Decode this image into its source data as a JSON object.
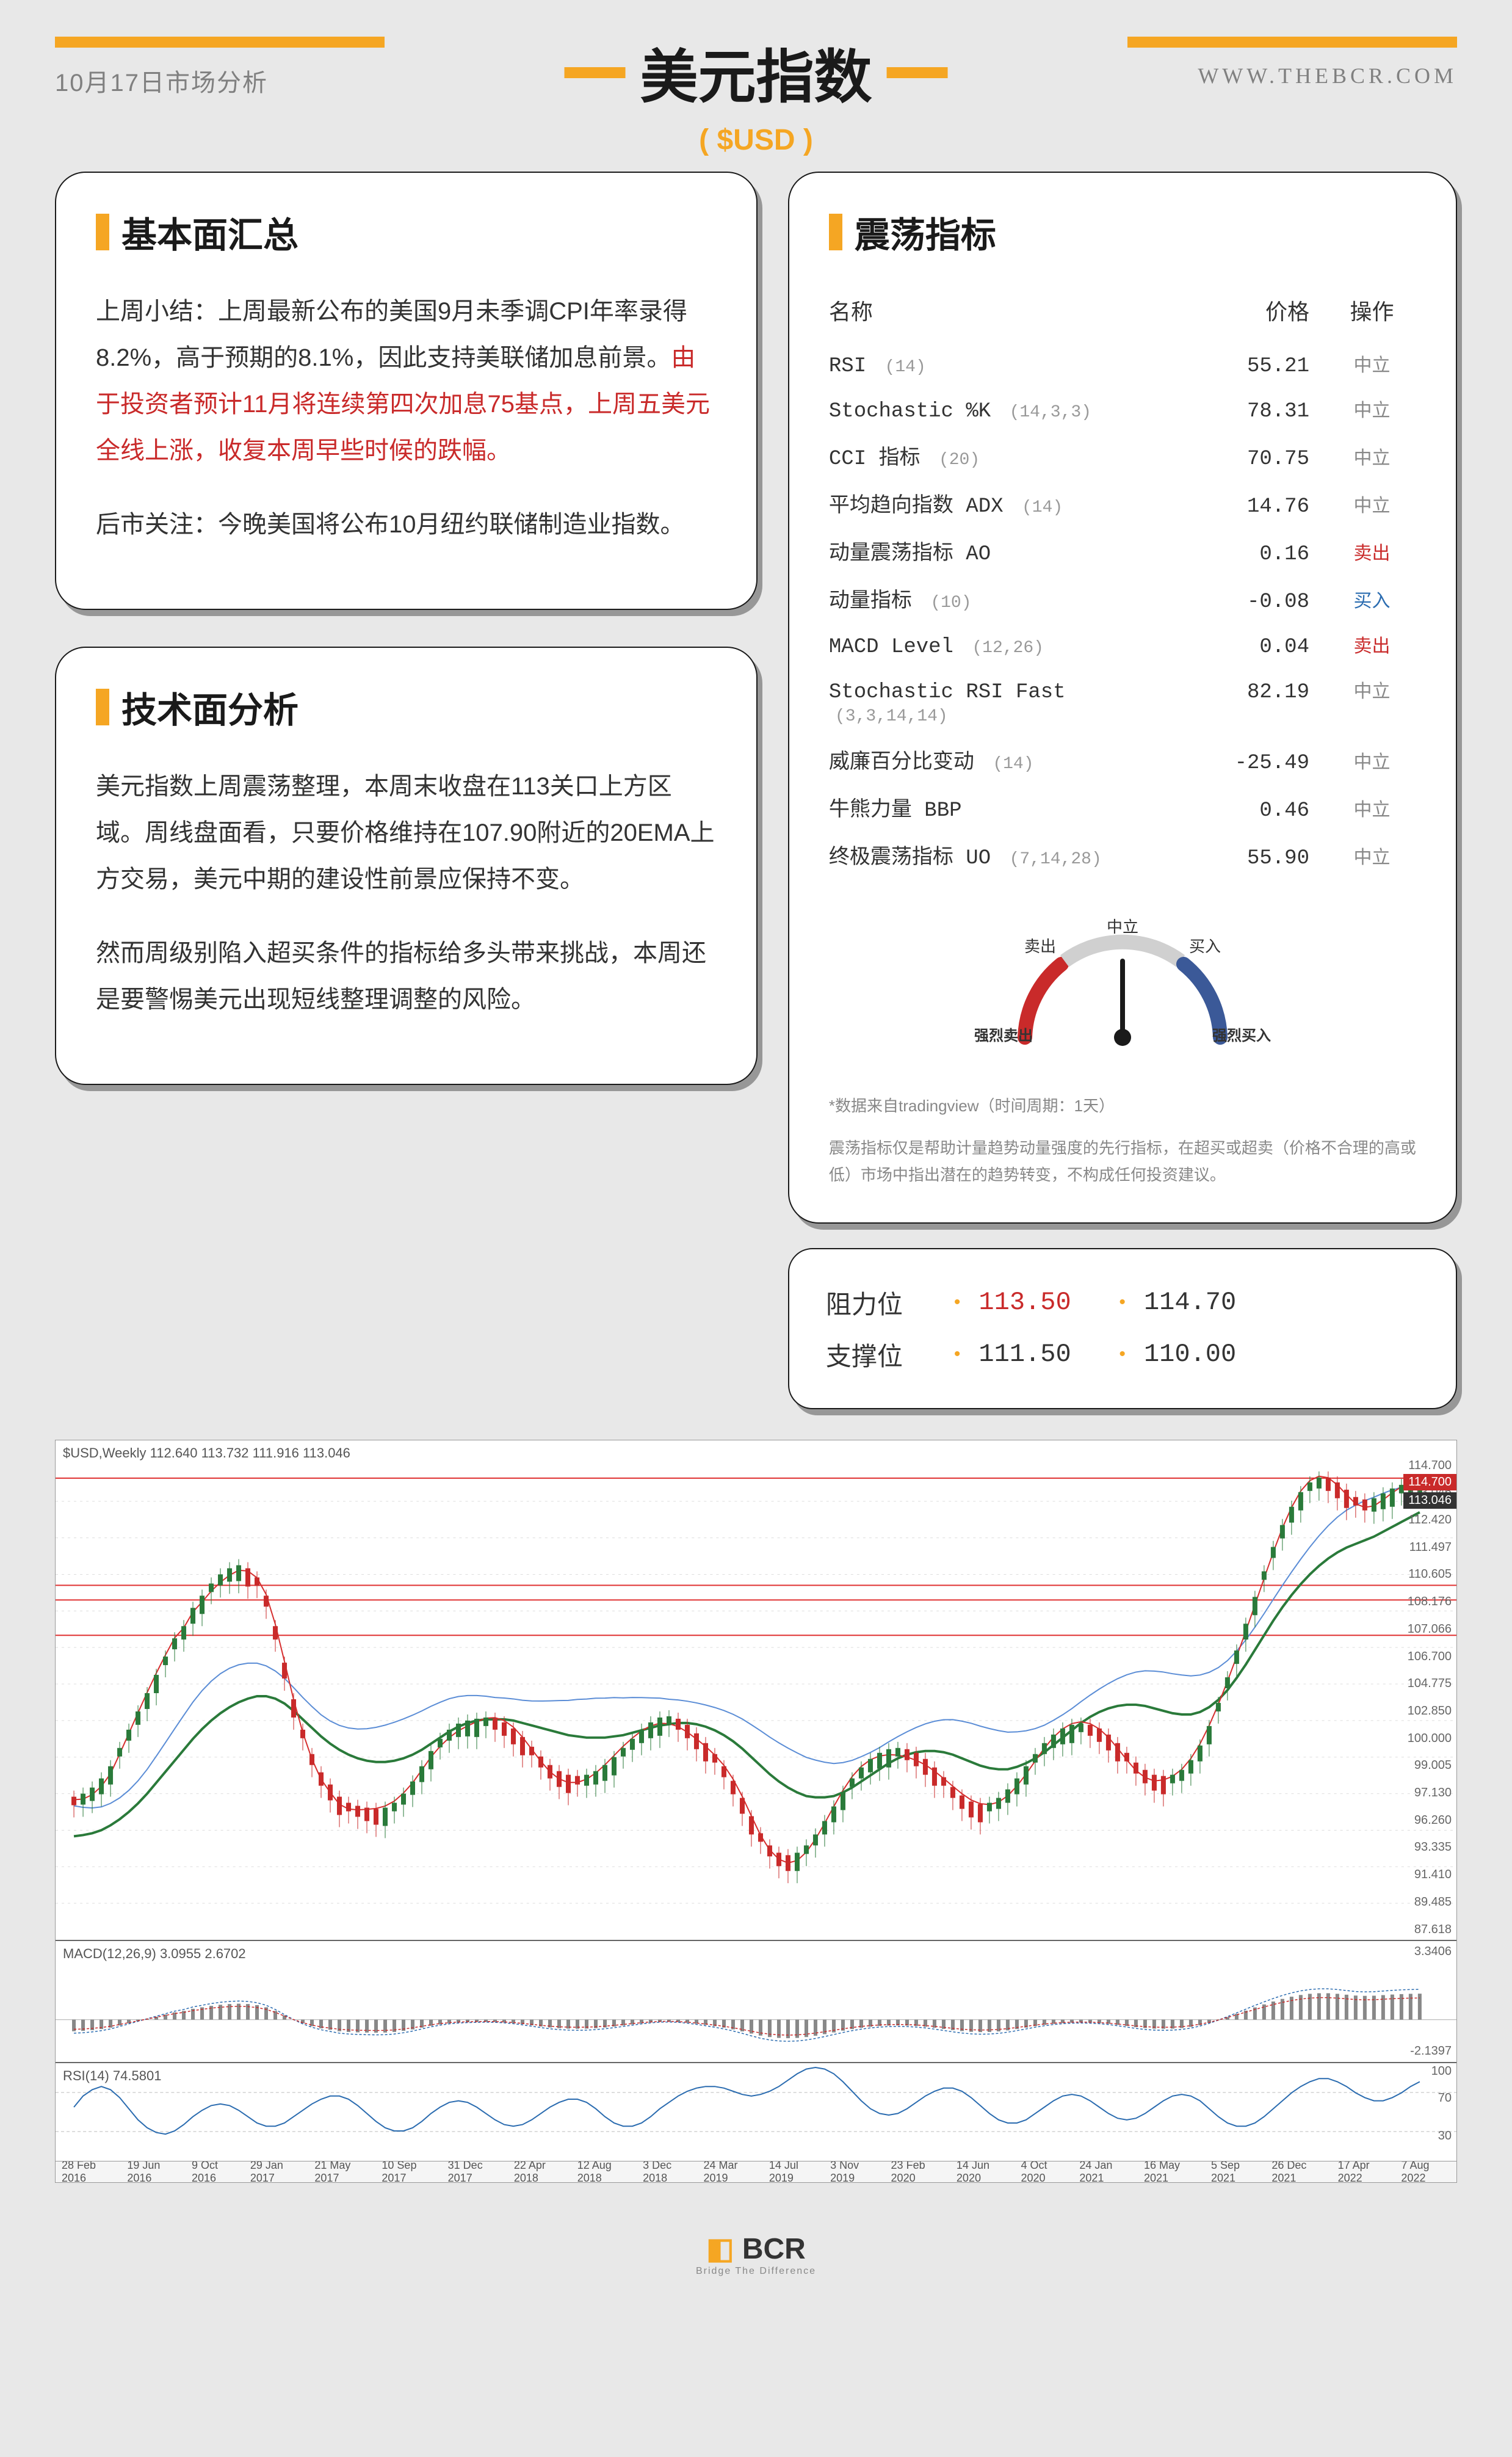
{
  "header": {
    "date": "10月17日市场分析",
    "title": "美元指数",
    "subtitle": "( $USD )",
    "website": "WWW.THEBCR.COM",
    "bar_color": "#f5a623"
  },
  "fundamentals": {
    "title": "基本面汇总",
    "p1_black_a": "上周小结：上周最新公布的美国9月未季调CPI年率录得8.2%，高于预期的8.1%，因此支持美联储加息前景。",
    "p1_red": "由于投资者预计11月将连续第四次加息75基点，上周五美元全线上涨，收复本周早些时候的跌幅。",
    "p2": "后市关注：今晚美国将公布10月纽约联储制造业指数。"
  },
  "technical": {
    "title": "技术面分析",
    "p1": "美元指数上周震荡整理，本周末收盘在113关口上方区域。周线盘面看，只要价格维持在107.90附近的20EMA上方交易，美元中期的建设性前景应保持不变。",
    "p2": "然而周级别陷入超买条件的指标给多头带来挑战，本周还是要警惕美元出现短线整理调整的风险。"
  },
  "oscillators": {
    "title": "震荡指标",
    "headers": {
      "name": "名称",
      "price": "价格",
      "action": "操作"
    },
    "rows": [
      {
        "name": "RSI",
        "params": "(14)",
        "price": "55.21",
        "action": "中立",
        "cls": "act-neutral"
      },
      {
        "name": "Stochastic %K",
        "params": "(14,3,3)",
        "price": "78.31",
        "action": "中立",
        "cls": "act-neutral"
      },
      {
        "name": "CCI 指标",
        "params": "(20)",
        "price": "70.75",
        "action": "中立",
        "cls": "act-neutral"
      },
      {
        "name": "平均趋向指数 ADX",
        "params": "(14)",
        "price": "14.76",
        "action": "中立",
        "cls": "act-neutral"
      },
      {
        "name": "动量震荡指标 AO",
        "params": "",
        "price": "0.16",
        "action": "卖出",
        "cls": "act-sell"
      },
      {
        "name": "动量指标",
        "params": "(10)",
        "price": "-0.08",
        "action": "买入",
        "cls": "act-buy"
      },
      {
        "name": "MACD Level",
        "params": "(12,26)",
        "price": "0.04",
        "action": "卖出",
        "cls": "act-sell"
      },
      {
        "name": "Stochastic RSI Fast",
        "params": "(3,3,14,14)",
        "price": "82.19",
        "action": "中立",
        "cls": "act-neutral"
      },
      {
        "name": "威廉百分比变动",
        "params": "(14)",
        "price": "-25.49",
        "action": "中立",
        "cls": "act-neutral"
      },
      {
        "name": "牛熊力量 BBP",
        "params": "",
        "price": "0.46",
        "action": "中立",
        "cls": "act-neutral"
      },
      {
        "name": "终极震荡指标 UO",
        "params": "(7,14,28)",
        "price": "55.90",
        "action": "中立",
        "cls": "act-neutral"
      }
    ],
    "gauge": {
      "labels": {
        "strong_sell": "强烈卖出",
        "sell": "卖出",
        "neutral": "中立",
        "buy": "买入",
        "strong_buy": "强烈买入"
      },
      "colors": {
        "sell": "#c92a2a",
        "neutral": "#d0d0d0",
        "buy": "#3b5998"
      },
      "needle_angle": 0
    },
    "disclaimer_a": "*数据来自tradingview（时间周期：1天）",
    "disclaimer_b": "震荡指标仅是帮助计量趋势动量强度的先行指标，在超买或超卖（价格不合理的高或低）市场中指出潜在的趋势转变，不构成任何投资建议。"
  },
  "levels": {
    "resistance_label": "阻力位",
    "support_label": "支撑位",
    "resistance": [
      "113.50",
      "114.70"
    ],
    "support": [
      "111.50",
      "110.00"
    ]
  },
  "chart": {
    "main_label": "$USD,Weekly 112.640 113.732 111.916 113.046",
    "macd_label": "MACD(12,26,9) 3.0955 2.6702",
    "rsi_label": "RSI(14) 74.5801",
    "y_ticks_main": [
      "114.700",
      "113.046",
      "112.420",
      "111.497",
      "110.605",
      "108.176",
      "107.066",
      "106.700",
      "104.775",
      "102.850",
      "100.000",
      "99.005",
      "97.130",
      "96.260",
      "93.335",
      "91.410",
      "89.485",
      "87.618"
    ],
    "y_ticks_macd": [
      "3.3406",
      "-2.1397"
    ],
    "y_ticks_rsi": [
      "100",
      "70",
      "30"
    ],
    "x_ticks": [
      "28 Feb 2016",
      "19 Jun 2016",
      "9 Oct 2016",
      "29 Jan 2017",
      "21 May 2017",
      "10 Sep 2017",
      "31 Dec 2017",
      "22 Apr 2018",
      "12 Aug 2018",
      "3 Dec 2018",
      "24 Mar 2019",
      "14 Jul 2019",
      "3 Nov 2019",
      "23 Feb 2020",
      "14 Jun 2020",
      "4 Oct 2020",
      "24 Jan 2021",
      "16 May 2021",
      "5 Sep 2021",
      "26 Dec 2021",
      "17 Apr 2022",
      "7 Aug 2022"
    ],
    "hline_color": "#e03131",
    "ema_fast_color": "#d62e2e",
    "ema_slow_color": "#2a7a3a",
    "ma_color": "#5b8dd6",
    "hlines_y": [
      62,
      238,
      262,
      320
    ],
    "candle_up": "#2a7a3a",
    "candle_down": "#c92a2a",
    "price_points": [
      560,
      555,
      545,
      530,
      510,
      480,
      450,
      420,
      390,
      360,
      330,
      300,
      280,
      250,
      230,
      210,
      195,
      185,
      180,
      185,
      200,
      230,
      280,
      340,
      400,
      450,
      490,
      520,
      540,
      560,
      570,
      575,
      578,
      580,
      578,
      570,
      555,
      535,
      510,
      485,
      465,
      450,
      440,
      435,
      432,
      430,
      432,
      438,
      448,
      462,
      478,
      494,
      508,
      518,
      524,
      526,
      524,
      518,
      508,
      495,
      480,
      465,
      450,
      438,
      430,
      428,
      432,
      442,
      456,
      472,
      490,
      510,
      534,
      562,
      592,
      620,
      640,
      652,
      656,
      652,
      640,
      622,
      600,
      576,
      552,
      530,
      512,
      498,
      488,
      482,
      480,
      482,
      488,
      498,
      512,
      528,
      544,
      558,
      568,
      572,
      570,
      562,
      548,
      530,
      510,
      490,
      472,
      458,
      448,
      442,
      440,
      442,
      448,
      458,
      472,
      488,
      504,
      516,
      524,
      526,
      524,
      516,
      500,
      476,
      444,
      406,
      364,
      320,
      276,
      232,
      190,
      150,
      114,
      84,
      60,
      44,
      36,
      36,
      44,
      56,
      68,
      72,
      70,
      62,
      54,
      48,
      44,
      42
    ],
    "ema_slow_points": [
      620,
      618,
      615,
      610,
      602,
      592,
      580,
      566,
      550,
      532,
      514,
      496,
      478,
      460,
      444,
      430,
      418,
      408,
      400,
      394,
      390,
      390,
      394,
      402,
      414,
      428,
      442,
      456,
      468,
      478,
      486,
      492,
      496,
      498,
      498,
      496,
      492,
      486,
      478,
      468,
      458,
      448,
      440,
      434,
      430,
      428,
      428,
      428,
      430,
      434,
      438,
      442,
      446,
      450,
      454,
      456,
      458,
      458,
      458,
      456,
      454,
      450,
      446,
      442,
      438,
      436,
      434,
      434,
      436,
      440,
      446,
      454,
      464,
      476,
      490,
      504,
      518,
      530,
      540,
      548,
      554,
      556,
      556,
      554,
      548,
      540,
      530,
      520,
      510,
      500,
      492,
      486,
      482,
      480,
      480,
      482,
      486,
      492,
      498,
      504,
      508,
      510,
      510,
      506,
      500,
      492,
      482,
      470,
      458,
      446,
      434,
      424,
      416,
      410,
      406,
      404,
      404,
      406,
      410,
      414,
      418,
      420,
      420,
      416,
      408,
      396,
      380,
      360,
      338,
      314,
      290,
      266,
      244,
      224,
      206,
      190,
      176,
      164,
      154,
      146,
      140,
      134,
      128,
      120,
      112,
      104,
      96,
      88
    ],
    "rsi_points": [
      60,
      74,
      82,
      86,
      82,
      72,
      58,
      44,
      34,
      28,
      26,
      30,
      38,
      48,
      56,
      62,
      64,
      62,
      56,
      48,
      40,
      36,
      36,
      40,
      48,
      56,
      64,
      70,
      74,
      74,
      70,
      62,
      52,
      42,
      34,
      30,
      30,
      34,
      42,
      52,
      60,
      66,
      68,
      66,
      60,
      52,
      44,
      38,
      36,
      38,
      44,
      52,
      60,
      66,
      70,
      70,
      66,
      58,
      48,
      40,
      36,
      36,
      40,
      48,
      58,
      66,
      74,
      80,
      84,
      86,
      86,
      84,
      80,
      76,
      74,
      76,
      80,
      86,
      94,
      102,
      108,
      110,
      108,
      102,
      92,
      80,
      68,
      58,
      52,
      50,
      52,
      58,
      66,
      74,
      80,
      84,
      84,
      80,
      72,
      62,
      52,
      44,
      40,
      40,
      44,
      52,
      60,
      68,
      74,
      76,
      74,
      68,
      60,
      52,
      46,
      44,
      46,
      52,
      60,
      68,
      74,
      76,
      74,
      68,
      58,
      48,
      40,
      36,
      36,
      40,
      48,
      58,
      68,
      78,
      86,
      92,
      96,
      96,
      92,
      86,
      78,
      72,
      68,
      68,
      72,
      78,
      86,
      92
    ]
  },
  "footer": {
    "brand": "BCR",
    "tagline": "Bridge The Difference"
  }
}
